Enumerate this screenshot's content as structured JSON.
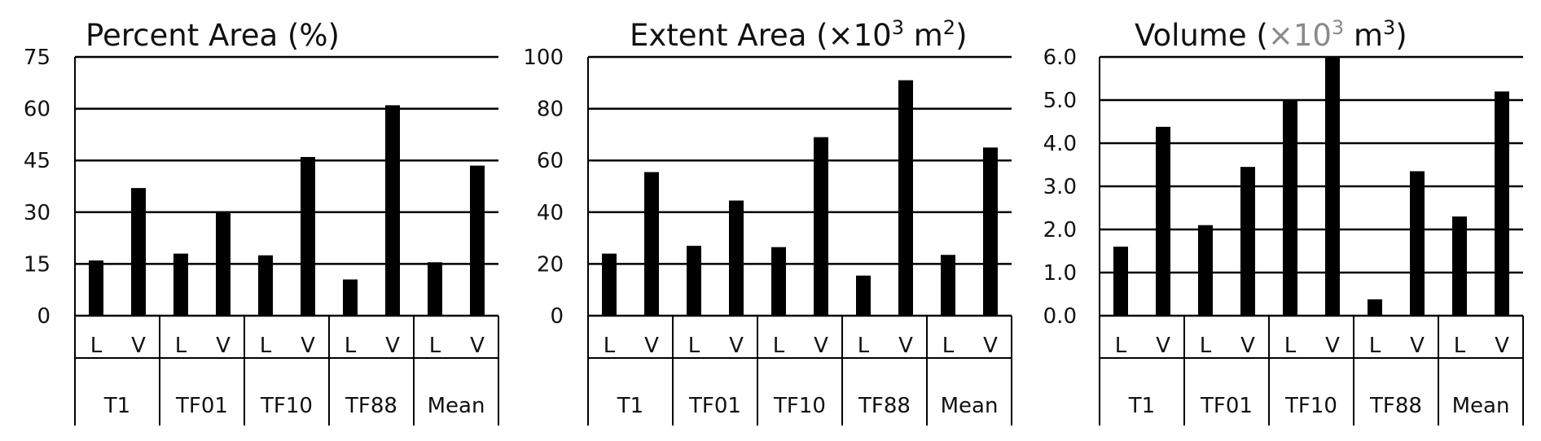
{
  "chart_data": [
    {
      "type": "bar",
      "title": "Percent Area (%)",
      "title_parts": [
        {
          "text": "Percent Area (%)"
        }
      ],
      "groups": [
        "T1",
        "TF01",
        "TF10",
        "TF88",
        "Mean"
      ],
      "categories": [
        "L",
        "V",
        "L",
        "V",
        "L",
        "V",
        "L",
        "V",
        "L",
        "V"
      ],
      "values": [
        16,
        37,
        18,
        30,
        17.5,
        46,
        10.5,
        61,
        15.5,
        43.5
      ],
      "ylim": [
        0,
        75
      ],
      "yticks": [
        "0",
        "15",
        "30",
        "45",
        "60",
        "75"
      ],
      "grid": true
    },
    {
      "type": "bar",
      "title": "Extent Area (×10³ m²)",
      "title_parts": [
        {
          "text": "Extent Area (×10"
        },
        {
          "text": "3",
          "sup": true
        },
        {
          "text": " m"
        },
        {
          "text": "2",
          "sup": true
        },
        {
          "text": ")"
        }
      ],
      "groups": [
        "T1",
        "TF01",
        "TF10",
        "TF88",
        "Mean"
      ],
      "categories": [
        "L",
        "V",
        "L",
        "V",
        "L",
        "V",
        "L",
        "V",
        "L",
        "V"
      ],
      "values": [
        24,
        55.5,
        27,
        44.5,
        26.5,
        69,
        15.5,
        91,
        23.5,
        65
      ],
      "ylim": [
        0,
        100
      ],
      "yticks": [
        "0",
        "20",
        "40",
        "60",
        "80",
        "100"
      ],
      "grid": true
    },
    {
      "type": "bar",
      "title": "Volume (×10³ m³)",
      "title_parts": [
        {
          "text": "Volume ("
        },
        {
          "text": "×10",
          "grey": true
        },
        {
          "text": "3",
          "sup": true,
          "grey": true
        },
        {
          "text": " m"
        },
        {
          "text": "3",
          "sup": true
        },
        {
          "text": ")"
        }
      ],
      "groups": [
        "T1",
        "TF01",
        "TF10",
        "TF88",
        "Mean"
      ],
      "categories": [
        "L",
        "V",
        "L",
        "V",
        "L",
        "V",
        "L",
        "V",
        "L",
        "V"
      ],
      "values": [
        1.6,
        4.38,
        2.1,
        3.45,
        5.0,
        6.0,
        0.38,
        3.35,
        2.3,
        5.2
      ],
      "ylim": [
        0,
        6
      ],
      "yticks": [
        "0.0",
        "1.0",
        "2.0",
        "3.0",
        "4.0",
        "5.0",
        "6.0"
      ],
      "grid": true
    }
  ]
}
